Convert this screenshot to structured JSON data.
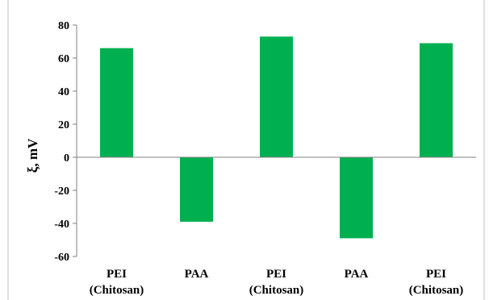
{
  "chart_data": {
    "type": "bar",
    "title": "",
    "xlabel": "",
    "ylabel": "ξ, mV",
    "categories": [
      [
        "PEI",
        "(Chitosan)"
      ],
      [
        "PAA"
      ],
      [
        "PEI",
        "(Chitosan)"
      ],
      [
        "PAA"
      ],
      [
        "PEI",
        "(Chitosan)"
      ]
    ],
    "values": [
      66,
      -39,
      73,
      -49,
      69
    ],
    "ylim": [
      -60,
      80
    ],
    "yticks": [
      80,
      60,
      40,
      20,
      0,
      -20,
      -40,
      -60
    ],
    "ytick_labels": [
      "80",
      "60",
      "40",
      "20",
      "0",
      "-20",
      "-40",
      "-60"
    ],
    "grid": false,
    "legend": "none",
    "bar_color": "#00b050"
  }
}
